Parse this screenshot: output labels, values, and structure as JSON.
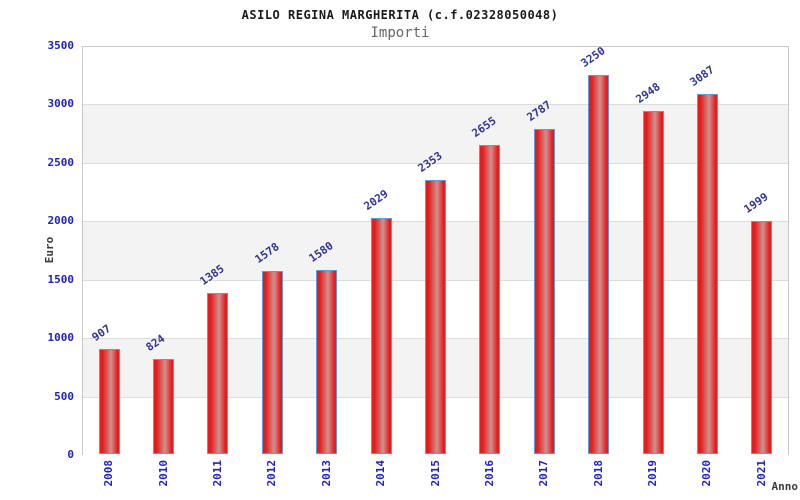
{
  "chart_data": {
    "type": "bar",
    "title": "ASILO REGINA MARGHERITA (c.f.02328050048)",
    "subtitle": "Importi",
    "xlabel": "Anno",
    "ylabel": "Euro",
    "categories": [
      "2008",
      "2010",
      "2011",
      "2012",
      "2013",
      "2014",
      "2015",
      "2016",
      "2017",
      "2018",
      "2019",
      "2020",
      "2021"
    ],
    "values": [
      907,
      824,
      1385,
      1578,
      1580,
      2029,
      2353,
      2655,
      2787,
      3250,
      2948,
      3087,
      1999
    ],
    "ylim": [
      0,
      3500
    ],
    "ytick_step": 500,
    "yticks": [
      0,
      500,
      1000,
      1500,
      2000,
      2500,
      3000,
      3500
    ],
    "grid": "horizontal-bands-alternating",
    "legend_position": "none",
    "value_labels_shown": true,
    "value_label_angle_deg": -35,
    "x_label_angle_deg": -90
  },
  "colors": {
    "background": "#ffffff",
    "title": "#1a1a1a",
    "subtitle": "#666666",
    "plot_border": "#c8c8c8",
    "gridline": "#dcdcdc",
    "band": "#f3f3f4",
    "bar_red": "#e41c1c",
    "bar_highlight": "#d19090",
    "bar_border": "#5b9ce0",
    "tick_label": "#2020cc",
    "value_label": "#333399",
    "axis_label": "#3c3c3c"
  }
}
